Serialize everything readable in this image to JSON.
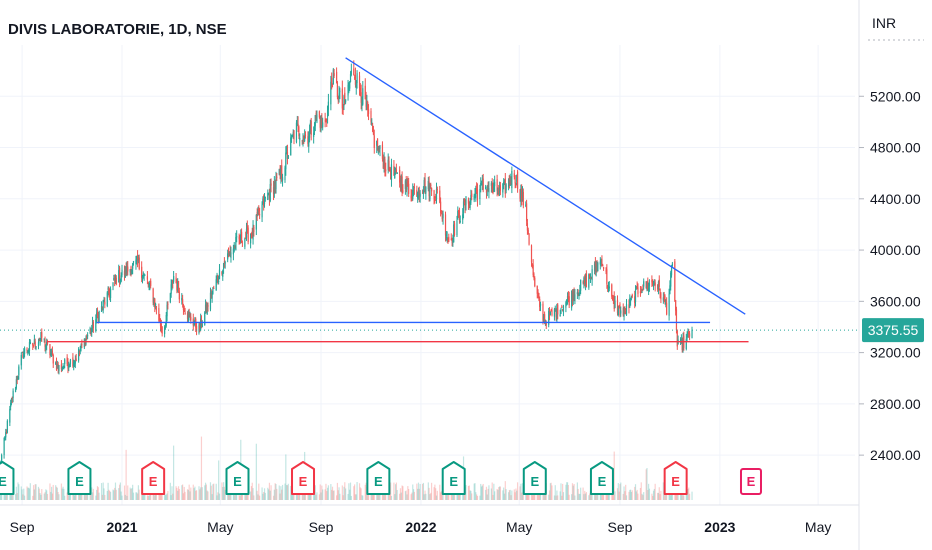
{
  "header": {
    "title": "DIVIS LABORATORIE, 1D, NSE"
  },
  "colors": {
    "up": "#26a69a",
    "down": "#ef5350",
    "trendline": "#2962ff",
    "support": "#2962ff",
    "support_low": "#f23645",
    "price_tag": "#26a69a",
    "earnings_past_pos": "#089981",
    "earnings_past_neg": "#f23645",
    "earnings_future": "#e91e63"
  },
  "chart_data": {
    "type": "candlestick",
    "title": "DIVIS LABORATORIE, 1D, NSE",
    "y_unit": "INR",
    "ylim": [
      2050,
      5600
    ],
    "y_ticks": [
      "5200.00",
      "4800.00",
      "4400.00",
      "4000.00",
      "3600.00",
      "3200.00",
      "2800.00",
      "2400.00"
    ],
    "y_tick_values": [
      5200,
      4800,
      4400,
      4000,
      3600,
      3200,
      2800,
      2400
    ],
    "x_range": [
      "2020-08-05",
      "2023-06-15"
    ],
    "x_ticks": [
      {
        "label": "Sep",
        "date": "2020-09-01",
        "bold": false
      },
      {
        "label": "2021",
        "date": "2021-01-01",
        "bold": true
      },
      {
        "label": "May",
        "date": "2021-05-01",
        "bold": false
      },
      {
        "label": "Sep",
        "date": "2021-09-01",
        "bold": false
      },
      {
        "label": "2022",
        "date": "2022-01-01",
        "bold": true
      },
      {
        "label": "May",
        "date": "2022-05-01",
        "bold": false
      },
      {
        "label": "Sep",
        "date": "2022-09-01",
        "bold": false
      },
      {
        "label": "2023",
        "date": "2023-01-01",
        "bold": true
      },
      {
        "label": "May",
        "date": "2023-05-01",
        "bold": false
      }
    ],
    "last_price": "3375.55",
    "last_price_value": 3375.55,
    "price_path": [
      [
        "2020-08-05",
        2320
      ],
      [
        "2020-08-20",
        2850
      ],
      [
        "2020-09-02",
        3200
      ],
      [
        "2020-09-25",
        3320
      ],
      [
        "2020-10-15",
        3080
      ],
      [
        "2020-11-05",
        3150
      ],
      [
        "2020-12-01",
        3470
      ],
      [
        "2020-12-25",
        3780
      ],
      [
        "2021-01-20",
        3900
      ],
      [
        "2021-02-05",
        3700
      ],
      [
        "2021-02-20",
        3350
      ],
      [
        "2021-03-05",
        3800
      ],
      [
        "2021-03-20",
        3520
      ],
      [
        "2021-04-05",
        3380
      ],
      [
        "2021-04-20",
        3650
      ],
      [
        "2021-05-05",
        3900
      ],
      [
        "2021-05-20",
        4050
      ],
      [
        "2021-06-10",
        4150
      ],
      [
        "2021-06-25",
        4400
      ],
      [
        "2021-07-15",
        4600
      ],
      [
        "2021-08-01",
        4950
      ],
      [
        "2021-08-15",
        4880
      ],
      [
        "2021-08-28",
        5050
      ],
      [
        "2021-09-05",
        4950
      ],
      [
        "2021-09-15",
        5350
      ],
      [
        "2021-09-28",
        5100
      ],
      [
        "2021-10-10",
        5420
      ],
      [
        "2021-10-25",
        5130
      ],
      [
        "2021-11-05",
        4850
      ],
      [
        "2021-11-20",
        4650
      ],
      [
        "2021-12-05",
        4550
      ],
      [
        "2021-12-20",
        4450
      ],
      [
        "2022-01-05",
        4500
      ],
      [
        "2022-01-20",
        4450
      ],
      [
        "2022-02-05",
        4050
      ],
      [
        "2022-02-15",
        4250
      ],
      [
        "2022-03-01",
        4400
      ],
      [
        "2022-03-20",
        4500
      ],
      [
        "2022-04-10",
        4450
      ],
      [
        "2022-04-25",
        4600
      ],
      [
        "2022-05-08",
        4350
      ],
      [
        "2022-05-20",
        3700
      ],
      [
        "2022-06-01",
        3450
      ],
      [
        "2022-06-20",
        3550
      ],
      [
        "2022-07-05",
        3650
      ],
      [
        "2022-07-25",
        3780
      ],
      [
        "2022-08-10",
        3930
      ],
      [
        "2022-08-22",
        3600
      ],
      [
        "2022-09-05",
        3500
      ],
      [
        "2022-09-25",
        3700
      ],
      [
        "2022-10-15",
        3750
      ],
      [
        "2022-10-28",
        3550
      ],
      [
        "2022-11-05",
        3900
      ],
      [
        "2022-11-10",
        3250
      ],
      [
        "2022-11-20",
        3280
      ],
      [
        "2022-11-28",
        3375.55
      ]
    ],
    "lines": [
      {
        "name": "descending-trendline",
        "color": "trendline",
        "from": [
          "2021-10-01",
          5500
        ],
        "to": [
          "2023-02-01",
          3500
        ]
      },
      {
        "name": "support-line-upper",
        "color": "support",
        "from": [
          "2020-12-01",
          3435
        ],
        "to": [
          "2022-12-20",
          3435
        ]
      },
      {
        "name": "support-line-lower",
        "color": "support_low",
        "from": [
          "2020-10-01",
          3285
        ],
        "to": [
          "2023-02-05",
          3285
        ]
      }
    ],
    "earnings": [
      {
        "date": "2020-08-08",
        "label": "E",
        "kind": "past_pos"
      },
      {
        "date": "2020-11-10",
        "label": "E",
        "kind": "past_pos"
      },
      {
        "date": "2021-02-08",
        "label": "E",
        "kind": "past_neg"
      },
      {
        "date": "2021-05-22",
        "label": "E",
        "kind": "past_pos"
      },
      {
        "date": "2021-08-10",
        "label": "E",
        "kind": "past_neg"
      },
      {
        "date": "2021-11-10",
        "label": "E",
        "kind": "past_pos"
      },
      {
        "date": "2022-02-10",
        "label": "E",
        "kind": "past_pos"
      },
      {
        "date": "2022-05-20",
        "label": "E",
        "kind": "past_pos"
      },
      {
        "date": "2022-08-10",
        "label": "E",
        "kind": "past_pos"
      },
      {
        "date": "2022-11-08",
        "label": "E",
        "kind": "past_neg"
      },
      {
        "date": "2023-02-08",
        "label": "E",
        "kind": "future"
      }
    ]
  }
}
